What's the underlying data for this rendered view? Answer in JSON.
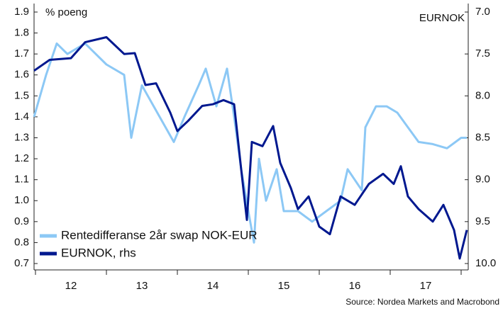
{
  "chart_data": {
    "type": "line",
    "annotations": [
      "% poeng",
      "EURNOK"
    ],
    "source": "Source: Nordea Markets and Macrobond",
    "categories": [
      "12",
      "13",
      "14",
      "15",
      "16",
      "17"
    ],
    "xlim": [
      11.98,
      18.1
    ],
    "xticks": [
      12,
      13,
      14,
      15,
      16,
      17,
      18
    ],
    "ylim": [
      0.7,
      1.9
    ],
    "yticks": [
      0.7,
      0.8,
      0.9,
      {
        "value": 1,
        "label": "1.0"
      },
      1.1,
      1.2,
      1.3,
      1.4,
      1.5,
      1.6,
      1.7,
      1.8,
      1.9
    ],
    "y2lim": [
      10,
      7
    ],
    "y2ticks": [
      {
        "value": 7,
        "label": "7.0"
      },
      7.5,
      {
        "value": 8,
        "label": "8.0"
      },
      8.5,
      {
        "value": 9,
        "label": "9.0"
      },
      9.5,
      {
        "value": 10,
        "label": "10.0"
      }
    ],
    "grid": false,
    "legend": "lower-left",
    "series": [
      {
        "name": "Rentedifferanse 2år swap NOK-EUR",
        "color": "#8cc8f5",
        "x": [
          11.98,
          12.15,
          12.3,
          12.45,
          12.7,
          13.0,
          13.25,
          13.35,
          13.5,
          13.75,
          13.95,
          14.1,
          14.3,
          14.4,
          14.55,
          14.7,
          14.8,
          14.9,
          15.0,
          15.08,
          15.15,
          15.25,
          15.4,
          15.5,
          15.7,
          15.9,
          16.1,
          16.3,
          16.4,
          16.5,
          16.6,
          16.65,
          16.8,
          16.95,
          17.1,
          17.25,
          17.4,
          17.6,
          17.8,
          18.0,
          18.08
        ],
        "values": [
          1.4,
          1.6,
          1.75,
          1.7,
          1.75,
          1.65,
          1.6,
          1.3,
          1.55,
          1.4,
          1.28,
          1.4,
          1.55,
          1.63,
          1.45,
          1.63,
          1.4,
          1.15,
          0.95,
          0.8,
          1.2,
          1.0,
          1.15,
          0.95,
          0.95,
          0.9,
          0.95,
          1.0,
          1.15,
          1.1,
          1.05,
          1.35,
          1.45,
          1.45,
          1.42,
          1.35,
          1.28,
          1.27,
          1.25,
          1.3,
          1.3
        ]
      },
      {
        "name": "EURNOK, rhs",
        "color": "#00188f",
        "axis": "y2",
        "x": [
          11.98,
          12.2,
          12.5,
          12.7,
          13.0,
          13.25,
          13.4,
          13.55,
          13.7,
          13.9,
          14.0,
          14.15,
          14.35,
          14.5,
          14.65,
          14.8,
          14.9,
          14.98,
          15.05,
          15.2,
          15.35,
          15.45,
          15.6,
          15.7,
          15.85,
          16.0,
          16.15,
          16.3,
          16.5,
          16.7,
          16.9,
          17.05,
          17.15,
          17.25,
          17.4,
          17.6,
          17.75,
          17.9,
          17.98,
          18.08
        ],
        "values": [
          7.7,
          7.57,
          7.55,
          7.36,
          7.3,
          7.5,
          7.49,
          7.87,
          7.85,
          8.2,
          8.42,
          8.3,
          8.12,
          8.1,
          8.05,
          8.1,
          8.88,
          9.48,
          8.55,
          8.6,
          8.36,
          8.8,
          9.1,
          9.35,
          9.2,
          9.56,
          9.65,
          9.2,
          9.3,
          9.05,
          8.93,
          9.05,
          8.84,
          9.2,
          9.35,
          9.5,
          9.3,
          9.6,
          9.94,
          9.6
        ]
      }
    ]
  }
}
